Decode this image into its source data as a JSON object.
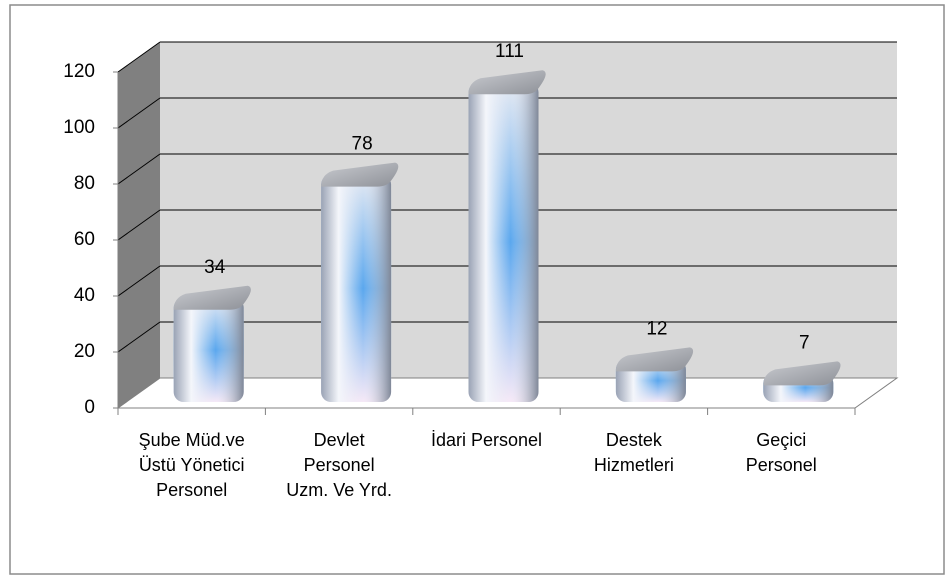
{
  "chart_data": {
    "type": "bar3d",
    "categories": [
      "Şube Müd.ve Üstü Yönetici Personel",
      "Devlet Personel Uzm. Ve Yrd.",
      "İdari Personel",
      "Destek Hizmetleri",
      "Geçici Personel"
    ],
    "values": [
      34,
      78,
      111,
      12,
      7
    ],
    "ylim": [
      0,
      120
    ],
    "yticks": [
      0,
      20,
      40,
      60,
      80,
      100,
      120
    ],
    "grid": true,
    "color": "#5aa7ee"
  }
}
